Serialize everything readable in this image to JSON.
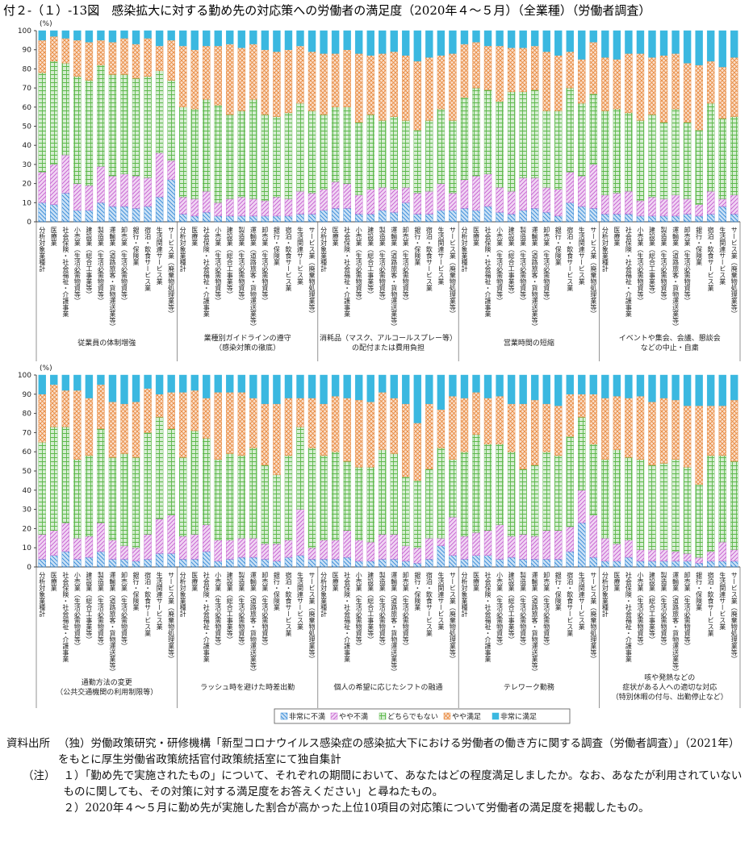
{
  "chart_data": {
    "type": "bar",
    "stacked": true,
    "title": "付２-（１）-13図　感染拡大に対する勤め先の対応策への労働者の満足度（2020年４～５月）（全業種）（労働者調査）",
    "ylabel": "(%)",
    "ylim": [
      0,
      100
    ],
    "yticks": [
      0,
      10,
      20,
      30,
      40,
      50,
      60,
      70,
      80,
      90,
      100
    ],
    "categories": [
      "分析対象業種計",
      "医療業",
      "社会保険・社会福祉・介護事業",
      "小売業（生活必需物資等）",
      "建設業（総合工事業等）",
      "製造業（生活必需物資等）",
      "運輸業（道路旅客・貨物運送業等）",
      "卸売業（生活必需物資等）",
      "銀行・保険業",
      "宿泊・飲食サービス業",
      "生活関連サービス業",
      "サービス業（廃棄物処理業等）"
    ],
    "groups": [
      [
        "従業員の体制増強"
      ],
      [
        "業種別ガイドラインの遵守",
        "（感染対策の徹底）"
      ],
      [
        "消耗品（マスク、アルコールスプレー等）",
        "の配付または費用負担"
      ],
      [
        "営業時間の短縮"
      ],
      [
        "イベントや集会、会議、懇談会",
        "などの中止・自粛"
      ],
      [
        "通勤方法の変更",
        "（公共交通機関の利用制限等）"
      ],
      [
        "ラッシュ時を避けた時差出勤"
      ],
      [
        "個人の希望に応じたシフトの融通"
      ],
      [
        "テレワーク勤務"
      ],
      [
        "咳や発熱などの",
        "症状がある人への適切な対応",
        "（特別休暇の付与、出勤停止など）"
      ]
    ],
    "series": [
      {
        "name": "非常に不満",
        "color": "#2f86d6",
        "values": [
          [
            10,
            9,
            15,
            6,
            6,
            10,
            8,
            8,
            7,
            8,
            13,
            22
          ],
          [
            4,
            3,
            5,
            3,
            3,
            3,
            3,
            3,
            3,
            3,
            4,
            4
          ],
          [
            6,
            7,
            7,
            4,
            4,
            6,
            5,
            10,
            4,
            4,
            6,
            6
          ],
          [
            7,
            6,
            8,
            5,
            4,
            6,
            7,
            5,
            3,
            10,
            8,
            7
          ],
          [
            4,
            4,
            4,
            3,
            3,
            3,
            3,
            4,
            3,
            4,
            8,
            4
          ],
          [
            4,
            6,
            8,
            4,
            5,
            8,
            4,
            4,
            3,
            4,
            7,
            7
          ],
          [
            4,
            4,
            8,
            3,
            4,
            5,
            5,
            4,
            3,
            5,
            6,
            4
          ],
          [
            4,
            4,
            5,
            3,
            3,
            4,
            4,
            3,
            2,
            4,
            11,
            6
          ],
          [
            4,
            6,
            6,
            4,
            5,
            4,
            4,
            4,
            4,
            8,
            23,
            5
          ],
          [
            3,
            3,
            5,
            3,
            3,
            3,
            3,
            3,
            2,
            3,
            3,
            3
          ]
        ]
      },
      {
        "name": "やや不満",
        "color": "#c45ccf",
        "values": [
          [
            16,
            21,
            20,
            14,
            13,
            19,
            16,
            17,
            17,
            15,
            23,
            10
          ],
          [
            9,
            9,
            11,
            7,
            9,
            10,
            9,
            8,
            10,
            9,
            12,
            11
          ],
          [
            11,
            14,
            13,
            10,
            13,
            12,
            12,
            8,
            11,
            12,
            14,
            9
          ],
          [
            15,
            18,
            17,
            13,
            12,
            17,
            16,
            13,
            14,
            16,
            16,
            23
          ],
          [
            10,
            11,
            12,
            8,
            10,
            9,
            11,
            8,
            6,
            12,
            4,
            10
          ],
          [
            13,
            13,
            15,
            11,
            11,
            15,
            10,
            7,
            7,
            13,
            18,
            20
          ],
          [
            12,
            13,
            14,
            11,
            10,
            10,
            10,
            8,
            9,
            9,
            24,
            6
          ],
          [
            10,
            10,
            14,
            11,
            10,
            13,
            13,
            8,
            8,
            11,
            4,
            20
          ],
          [
            12,
            12,
            13,
            18,
            11,
            13,
            12,
            15,
            15,
            13,
            17,
            22
          ],
          [
            12,
            9,
            9,
            6,
            6,
            6,
            5,
            4,
            3,
            5,
            10,
            6
          ]
        ]
      },
      {
        "name": "どちらでもない",
        "color": "#5cb84a",
        "values": [
          [
            52,
            54,
            48,
            56,
            55,
            53,
            53,
            52,
            51,
            53,
            43,
            42
          ],
          [
            47,
            47,
            48,
            51,
            44,
            45,
            52,
            45,
            42,
            45,
            46,
            43
          ],
          [
            39,
            39,
            40,
            38,
            39,
            35,
            38,
            35,
            33,
            37,
            39,
            38
          ],
          [
            43,
            46,
            44,
            45,
            52,
            45,
            46,
            40,
            41,
            44,
            38,
            37
          ],
          [
            44,
            44,
            41,
            42,
            43,
            40,
            45,
            40,
            39,
            46,
            42,
            41
          ],
          [
            48,
            54,
            50,
            41,
            42,
            49,
            43,
            48,
            47,
            53,
            53,
            45
          ],
          [
            41,
            54,
            45,
            42,
            45,
            43,
            47,
            41,
            36,
            44,
            43,
            52
          ],
          [
            44,
            46,
            36,
            38,
            39,
            44,
            42,
            36,
            35,
            36,
            47,
            30
          ],
          [
            44,
            51,
            45,
            42,
            44,
            34,
            37,
            41,
            39,
            47,
            38,
            37
          ],
          [
            41,
            49,
            43,
            47,
            44,
            45,
            48,
            45,
            38,
            50,
            45,
            46
          ]
        ]
      },
      {
        "name": "やや満足",
        "color": "#e8893e",
        "values": [
          [
            17,
            13,
            13,
            19,
            20,
            13,
            17,
            19,
            18,
            20,
            13,
            21
          ],
          [
            32,
            31,
            28,
            31,
            37,
            33,
            29,
            34,
            34,
            33,
            30,
            31
          ],
          [
            32,
            28,
            30,
            36,
            31,
            35,
            34,
            34,
            36,
            33,
            28,
            35
          ],
          [
            28,
            24,
            23,
            29,
            23,
            23,
            23,
            31,
            29,
            19,
            23,
            27
          ],
          [
            28,
            26,
            31,
            35,
            30,
            35,
            29,
            31,
            34,
            22,
            27,
            31
          ],
          [
            25,
            22,
            19,
            36,
            30,
            23,
            29,
            26,
            29,
            23,
            12,
            19
          ],
          [
            34,
            21,
            21,
            35,
            32,
            33,
            26,
            32,
            37,
            30,
            15,
            26
          ],
          [
            27,
            29,
            33,
            35,
            34,
            30,
            29,
            38,
            30,
            34,
            20,
            33
          ],
          [
            28,
            22,
            24,
            25,
            25,
            34,
            34,
            25,
            26,
            22,
            12,
            26
          ],
          [
            32,
            28,
            31,
            33,
            33,
            34,
            31,
            32,
            41,
            26,
            26,
            32
          ]
        ]
      },
      {
        "name": "非常に満足",
        "color": "#3bb8e0",
        "values": [
          [
            5,
            3,
            4,
            5,
            6,
            5,
            6,
            4,
            7,
            4,
            8,
            5
          ],
          [
            8,
            10,
            8,
            8,
            7,
            9,
            7,
            10,
            11,
            10,
            8,
            11
          ],
          [
            12,
            12,
            10,
            12,
            13,
            12,
            11,
            13,
            16,
            14,
            13,
            12
          ],
          [
            7,
            6,
            8,
            8,
            9,
            9,
            8,
            11,
            13,
            11,
            15,
            6
          ],
          [
            14,
            15,
            12,
            12,
            14,
            13,
            12,
            17,
            18,
            16,
            19,
            14
          ],
          [
            10,
            5,
            8,
            8,
            12,
            5,
            14,
            15,
            14,
            7,
            10,
            9
          ],
          [
            9,
            8,
            12,
            9,
            9,
            9,
            12,
            15,
            15,
            12,
            12,
            12
          ],
          [
            15,
            11,
            12,
            13,
            14,
            9,
            12,
            15,
            25,
            15,
            18,
            11
          ],
          [
            12,
            9,
            12,
            11,
            15,
            15,
            13,
            15,
            16,
            10,
            10,
            10
          ],
          [
            12,
            11,
            12,
            11,
            14,
            12,
            13,
            16,
            16,
            16,
            16,
            13
          ]
        ]
      }
    ],
    "source": {
      "label": "資料出所",
      "text": "（独）労働政策研究・研修機構「新型コロナウイルス感染症の感染拡大下における労働者の働き方に関する調査（労働者調査）」（2021年）をもとに厚生労働省政策統括官付政策統括室にて独自集計"
    },
    "notes": {
      "label": "（注）",
      "items": [
        "１）「勤め先で実施されたもの」について、それぞれの期間において、あなたはどの程度満足しましたか。なお、あなたが利用されていないものに関しても、その対策に対する満足度をお答えください」と尋ねたもの。",
        "２）2020年４～５月に勤め先が実施した割合が高かった上位10項目の対応策について労働者の満足度を掲載したもの。"
      ]
    }
  }
}
